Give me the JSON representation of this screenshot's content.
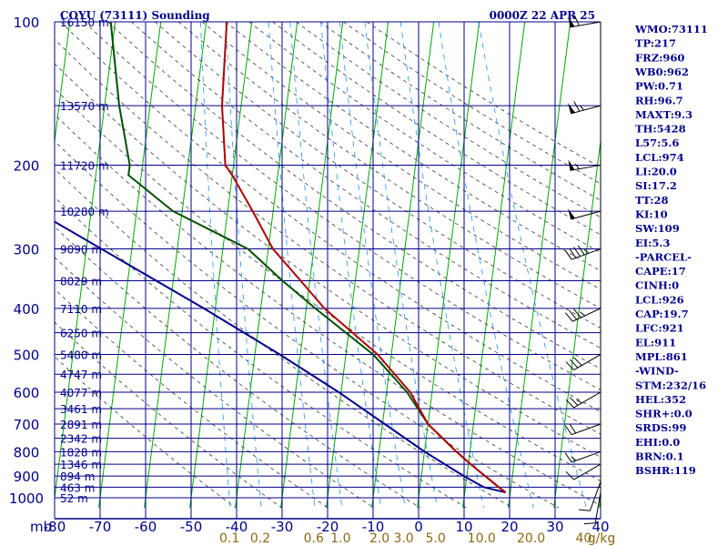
{
  "header": {
    "left_title": "COYU (73111) Sounding",
    "right_title": "0000Z 22 APR 25"
  },
  "chart_data": {
    "type": "skew-t",
    "x_axis_label": "mb",
    "y_pressure_ticks": [
      "100",
      "200",
      "300",
      "400",
      "500",
      "600",
      "700",
      "800",
      "900",
      "1000"
    ],
    "height_ticks": [
      {
        "p": 100,
        "label": "16150 m"
      },
      {
        "p": 150,
        "label": "13570 m"
      },
      {
        "p": 200,
        "label": "11720 m"
      },
      {
        "p": 250,
        "label": "10280 m"
      },
      {
        "p": 300,
        "label": "9090 m"
      },
      {
        "p": 350,
        "label": "8029 m"
      },
      {
        "p": 400,
        "label": "7110 m"
      },
      {
        "p": 450,
        "label": "6250 m"
      },
      {
        "p": 500,
        "label": "5480 m"
      },
      {
        "p": 550,
        "label": "4747 m"
      },
      {
        "p": 600,
        "label": "4077 m"
      },
      {
        "p": 650,
        "label": "3461 m"
      },
      {
        "p": 700,
        "label": "2891 m"
      },
      {
        "p": 750,
        "label": "2342 m"
      },
      {
        "p": 800,
        "label": "1828 m"
      },
      {
        "p": 850,
        "label": "1346 m"
      },
      {
        "p": 900,
        "label": "894 m"
      },
      {
        "p": 950,
        "label": "463 m"
      },
      {
        "p": 1000,
        "label": "52 m"
      }
    ],
    "temperature_ticks": [
      "-80",
      "-70",
      "-60",
      "-50",
      "-40",
      "-30",
      "-20",
      "-10",
      "0",
      "10",
      "20",
      "30",
      "40"
    ],
    "mixing_ratio_ticks": [
      "0.1",
      "0.2",
      "0.6",
      "1.0",
      "2.0",
      "3.0",
      "5.0",
      "10.0",
      "20.0",
      "40"
    ],
    "mixing_ratio_unit": "g/kg",
    "temperature_profile": [
      {
        "p": 100,
        "t": -55.5
      },
      {
        "p": 150,
        "t": -54.2
      },
      {
        "p": 200,
        "t": -51.8
      },
      {
        "p": 210,
        "t": -50.0
      },
      {
        "p": 250,
        "t": -44.5
      },
      {
        "p": 300,
        "t": -39.0
      },
      {
        "p": 350,
        "t": -32.0
      },
      {
        "p": 400,
        "t": -26.0
      },
      {
        "p": 500,
        "t": -13.0
      },
      {
        "p": 600,
        "t": -4.8
      },
      {
        "p": 700,
        "t": 0.0
      },
      {
        "p": 800,
        "t": 7.0
      },
      {
        "p": 850,
        "t": 10.5
      },
      {
        "p": 900,
        "t": 14.0
      },
      {
        "p": 925,
        "t": 15.7
      },
      {
        "p": 950,
        "t": 17.3
      },
      {
        "p": 975,
        "t": 19.0
      }
    ],
    "dewpoint_profile": [
      {
        "p": 100,
        "t": -81
      },
      {
        "p": 150,
        "t": -76.8
      },
      {
        "p": 200,
        "t": -72.8
      },
      {
        "p": 210,
        "t": -72.8
      },
      {
        "p": 250,
        "t": -62.0
      },
      {
        "p": 300,
        "t": -44.5
      },
      {
        "p": 350,
        "t": -36.0
      },
      {
        "p": 400,
        "t": -28.0
      },
      {
        "p": 500,
        "t": -14.0
      },
      {
        "p": 600,
        "t": -5.5
      },
      {
        "p": 700,
        "t": 0.0
      },
      {
        "p": 800,
        "t": 7.0
      },
      {
        "p": 850,
        "t": 10.5
      },
      {
        "p": 900,
        "t": 14.0
      },
      {
        "p": 925,
        "t": 15.7
      },
      {
        "p": 950,
        "t": 17.3
      },
      {
        "p": 975,
        "t": 19.0
      }
    ],
    "parcel_profile": [
      {
        "p": 250,
        "t": -92.0
      },
      {
        "p": 400,
        "t": -52.5
      },
      {
        "p": 500,
        "t": -34.5
      },
      {
        "p": 600,
        "t": -20.5
      },
      {
        "p": 700,
        "t": -9.5
      },
      {
        "p": 800,
        "t": 0.0
      },
      {
        "p": 900,
        "t": 9.3
      },
      {
        "p": 950,
        "t": 14.0
      },
      {
        "p": 975,
        "t": 19.0
      }
    ],
    "wind_barbs": [
      {
        "p": 100,
        "dir": 260,
        "spd": 60
      },
      {
        "p": 150,
        "dir": 255,
        "spd": 65
      },
      {
        "p": 200,
        "dir": 260,
        "spd": 55
      },
      {
        "p": 250,
        "dir": 255,
        "spd": 50
      },
      {
        "p": 300,
        "dir": 250,
        "spd": 45
      },
      {
        "p": 400,
        "dir": 245,
        "spd": 35
      },
      {
        "p": 500,
        "dir": 240,
        "spd": 30
      },
      {
        "p": 600,
        "dir": 240,
        "spd": 25
      },
      {
        "p": 700,
        "dir": 250,
        "spd": 20
      },
      {
        "p": 800,
        "dir": 250,
        "spd": 15
      },
      {
        "p": 850,
        "dir": 240,
        "spd": 10
      },
      {
        "p": 925,
        "dir": 200,
        "spd": 10
      },
      {
        "p": 975,
        "dir": 190,
        "spd": 10
      }
    ]
  },
  "indices": [
    "WMO:73111",
    "TP:217",
    "FRZ:960",
    "WB0:962",
    "PW:0.71",
    "RH:96.7",
    "MAXT:9.3",
    "TH:5428",
    "L57:5.6",
    "LCL:974",
    "LI:20.0",
    "SI:17.2",
    "TT:28",
    "KI:10",
    "SW:109",
    "EI:5.3",
    "-PARCEL-",
    "CAPE:17",
    "CINH:0",
    "LCL:926",
    "CAP:19.7",
    "LFC:921",
    "EL:911",
    "MPL:861",
    "-WIND-",
    "STM:232/16",
    "HEL:352",
    "SHR+:0.0",
    "SRDS:99",
    "EHI:0.0",
    "BRN:0.1",
    "BSHR:119"
  ],
  "colors": {
    "grid": "#00008b",
    "isotherm": "#00aa00",
    "dry_adiabat": "#3a3a3a",
    "mixing_ratio": "#1e90ff",
    "temperature": "#b00000",
    "dewpoint": "#005000",
    "parcel": "#00008b",
    "mixing_label": "#8b6914"
  }
}
